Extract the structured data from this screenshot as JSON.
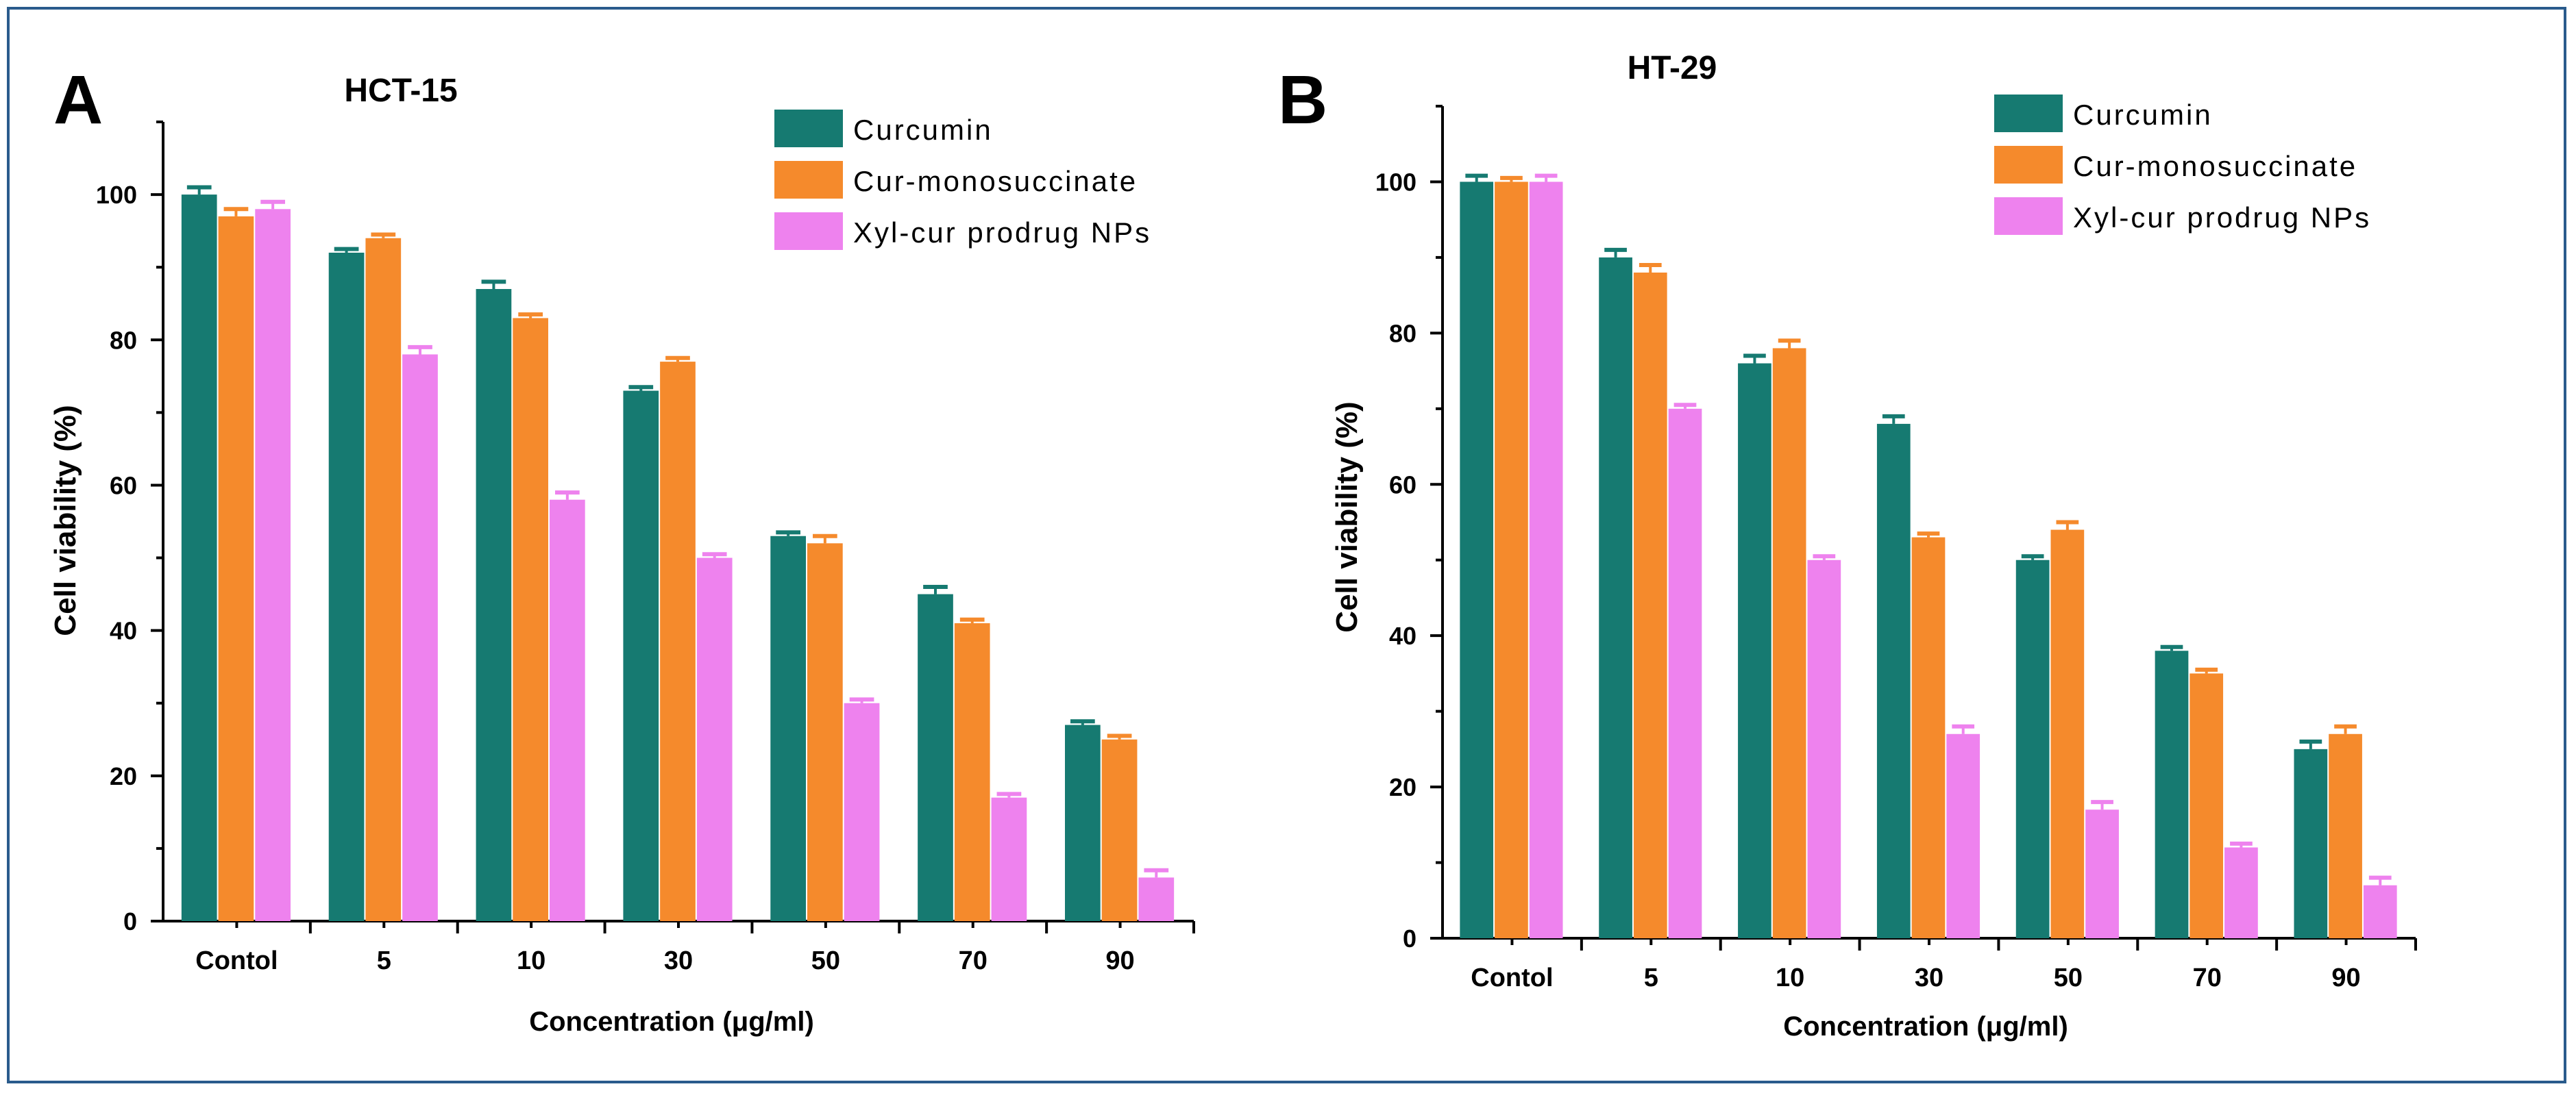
{
  "colors": {
    "frame": "#2a5b8c",
    "curcumin": "#167a71",
    "monosuccinate": "#f58a2c",
    "prodrug": "#ee82ee"
  },
  "chart_data": [
    {
      "type": "bar",
      "panel_label": "A",
      "title": "HCT-15",
      "xlabel": "Concentration (μg/ml)",
      "ylabel": "Cell viability (%)",
      "ylim": [
        0,
        110
      ],
      "yticks": [
        "0",
        "20",
        "40",
        "60",
        "80",
        "100"
      ],
      "categories": [
        "Contol",
        "5",
        "10",
        "30",
        "50",
        "70",
        "90"
      ],
      "series": [
        {
          "name": "Curcumin",
          "color": "#167a71",
          "values": [
            100,
            92,
            87,
            73,
            53,
            45,
            27
          ],
          "errors": [
            1,
            0.5,
            1,
            0.5,
            0.5,
            1,
            0.5
          ]
        },
        {
          "name": "Cur-monosuccinate",
          "color": "#f58a2c",
          "values": [
            97,
            94,
            83,
            77,
            52,
            41,
            25
          ],
          "errors": [
            1,
            0.5,
            0.5,
            0.5,
            1,
            0.5,
            0.5
          ]
        },
        {
          "name": "Xyl-cur prodrug NPs",
          "color": "#ee82ee",
          "values": [
            98,
            78,
            58,
            50,
            30,
            17,
            6
          ],
          "errors": [
            1,
            1,
            1,
            0.5,
            0.5,
            0.5,
            1
          ]
        }
      ]
    },
    {
      "type": "bar",
      "panel_label": "B",
      "title": "HT-29",
      "xlabel": "Concentration (μg/ml)",
      "ylabel": "Cell viability (%)",
      "ylim": [
        0,
        110
      ],
      "yticks": [
        "0",
        "20",
        "40",
        "60",
        "80",
        "100"
      ],
      "categories": [
        "Contol",
        "5",
        "10",
        "30",
        "50",
        "70",
        "90"
      ],
      "series": [
        {
          "name": "Curcumin",
          "color": "#167a71",
          "values": [
            100,
            90,
            76,
            68,
            50,
            38,
            25
          ],
          "errors": [
            0.8,
            1,
            1,
            1,
            0.5,
            0.5,
            1
          ]
        },
        {
          "name": "Cur-monosuccinate",
          "color": "#f58a2c",
          "values": [
            100,
            88,
            78,
            53,
            54,
            35,
            27
          ],
          "errors": [
            0.5,
            1,
            1,
            0.5,
            1,
            0.5,
            1
          ]
        },
        {
          "name": "Xyl-cur prodrug NPs",
          "color": "#ee82ee",
          "values": [
            100,
            70,
            50,
            27,
            17,
            12,
            7
          ],
          "errors": [
            0.8,
            0.5,
            0.5,
            1,
            1,
            0.5,
            1
          ]
        }
      ]
    }
  ]
}
